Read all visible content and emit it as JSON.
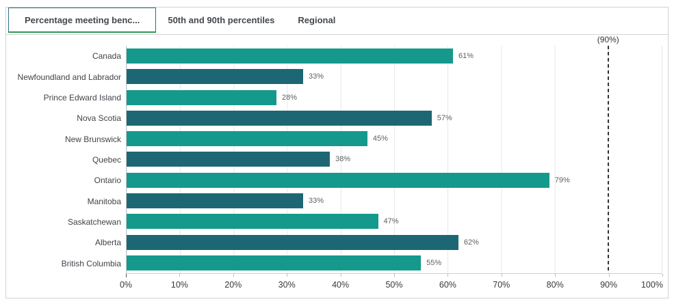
{
  "tabs": [
    {
      "label": "Percentage meeting benc...",
      "active": true
    },
    {
      "label": "50th and 90th percentiles",
      "active": false
    },
    {
      "label": "Regional",
      "active": false
    }
  ],
  "theme": {
    "tab-active-border": "#2b6f85",
    "tab-active-underline": "#2e9454",
    "ref-color": "#333333"
  },
  "chart_data": {
    "type": "bar",
    "orientation": "horizontal",
    "categories": [
      "Canada",
      "Newfoundland and Labrador",
      "Prince Edward Island",
      "Nova Scotia",
      "New Brunswick",
      "Quebec",
      "Ontario",
      "Manitoba",
      "Saskatchewan",
      "Alberta",
      "British Columbia"
    ],
    "values": [
      61,
      33,
      28,
      57,
      45,
      38,
      79,
      33,
      47,
      62,
      55
    ],
    "value_labels": [
      "61%",
      "33%",
      "28%",
      "57%",
      "45%",
      "38%",
      "79%",
      "33%",
      "47%",
      "62%",
      "55%"
    ],
    "xlim": [
      0,
      100
    ],
    "x_ticks": [
      "0%",
      "10%",
      "20%",
      "30%",
      "40%",
      "50%",
      "60%",
      "70%",
      "80%",
      "90%",
      "100%"
    ],
    "grid": "vertical",
    "legend": "none",
    "reference_line": {
      "value": 90,
      "label": "(90%)"
    },
    "colors": {
      "series_alternate": [
        "#14998C",
        "#1D6775"
      ],
      "reference_line": "#333333"
    }
  }
}
